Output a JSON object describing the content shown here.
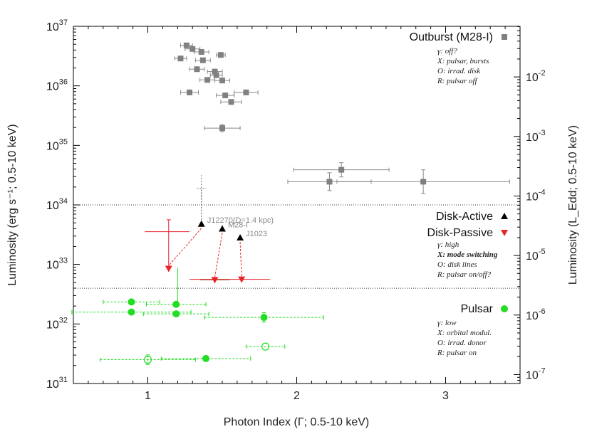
{
  "chart_data": {
    "type": "scatter",
    "xlabel": "Photon Index (Γ; 0.5-10 keV)",
    "ylabel_left": "Luminosity (erg s⁻¹; 0.5-10 keV)",
    "ylabel_right": "Luminosity (L_Edd; 0.5-10 keV)",
    "xlim": [
      0.5,
      3.5
    ],
    "ylim_log10": [
      31,
      37
    ],
    "x_ticks": [
      {
        "value": 1,
        "label": "1"
      },
      {
        "value": 2,
        "label": "2"
      },
      {
        "value": 3,
        "label": "3"
      }
    ],
    "y_ticks": [
      {
        "exp": 31,
        "label": "10",
        "sup": "31"
      },
      {
        "exp": 32,
        "label": "10",
        "sup": "32"
      },
      {
        "exp": 33,
        "label": "10",
        "sup": "33"
      },
      {
        "exp": 34,
        "label": "10",
        "sup": "34"
      },
      {
        "exp": 35,
        "label": "10",
        "sup": "35"
      },
      {
        "exp": 36,
        "label": "10",
        "sup": "36"
      },
      {
        "exp": 37,
        "label": "10",
        "sup": "37"
      }
    ],
    "y_right_ticks": [
      {
        "exp": 31.15,
        "label": "10",
        "sup": "-7"
      },
      {
        "exp": 32.15,
        "label": "10",
        "sup": "-6"
      },
      {
        "exp": 33.15,
        "label": "10",
        "sup": "-5"
      },
      {
        "exp": 34.15,
        "label": "10",
        "sup": "-4"
      },
      {
        "exp": 35.15,
        "label": "10",
        "sup": "-3"
      },
      {
        "exp": 36.15,
        "label": "10",
        "sup": "-2"
      }
    ],
    "boundaries_log10": [
      34.0,
      32.6
    ],
    "series": [
      {
        "name": "Outburst (M28-I)",
        "color": "#808080",
        "marker": "square",
        "notes": [
          "γ: off?",
          "X: pulsar, bursts",
          "O: irrad. disk",
          "R: pulsar off"
        ],
        "points": [
          {
            "x": 1.26,
            "logy": 36.68,
            "xerr": 0.04
          },
          {
            "x": 1.3,
            "logy": 36.62,
            "xerr": 0.05
          },
          {
            "x": 1.36,
            "logy": 36.57,
            "xerr": 0.05
          },
          {
            "x": 1.22,
            "logy": 36.46,
            "xerr": 0.04
          },
          {
            "x": 1.37,
            "logy": 36.43,
            "xerr": 0.05
          },
          {
            "x": 1.49,
            "logy": 36.52,
            "xerr": 0.03
          },
          {
            "x": 1.33,
            "logy": 36.28,
            "xerr": 0.05
          },
          {
            "x": 1.45,
            "logy": 36.24,
            "xerr": 0.05
          },
          {
            "x": 1.46,
            "logy": 36.18,
            "xerr": 0.04
          },
          {
            "x": 1.4,
            "logy": 36.1,
            "xerr": 0.05
          },
          {
            "x": 1.5,
            "logy": 36.09,
            "xerr": 0.05
          },
          {
            "x": 1.28,
            "logy": 35.89,
            "xerr": 0.06
          },
          {
            "x": 1.52,
            "logy": 35.84,
            "xerr": 0.06
          },
          {
            "x": 1.56,
            "logy": 35.73,
            "xerr": 0.07
          },
          {
            "x": 1.66,
            "logy": 35.89,
            "xerr": 0.08
          },
          {
            "x": 1.5,
            "logy": 35.29,
            "xerr": 0.12,
            "yerr": 0.06
          },
          {
            "x": 2.22,
            "logy": 34.39,
            "xerr": 0.28,
            "yerr": 0.15
          },
          {
            "x": 2.3,
            "logy": 34.59,
            "xerr": 0.32,
            "yerr": 0.12
          },
          {
            "x": 2.85,
            "logy": 34.39,
            "xerr": 0.58,
            "yerr": 0.2
          }
        ]
      },
      {
        "name": "Disk-Active",
        "color": "#000000",
        "marker": "triangle-up",
        "notes": [
          "γ: high",
          "X: mode switching",
          "O: disk lines",
          "R: pulsar on/off?"
        ],
        "points": [
          {
            "x": 1.36,
            "logy": 33.68,
            "label": "J12270(D=1.4 kpc)"
          },
          {
            "x": 1.5,
            "logy": 33.6,
            "label": "M28-I"
          },
          {
            "x": 1.62,
            "logy": 33.45,
            "label": "J1023"
          }
        ]
      },
      {
        "name": "Disk-Passive",
        "color": "#e8232a",
        "marker": "triangle-down",
        "points": [
          {
            "x": 1.14,
            "logy": 32.93
          },
          {
            "x": 1.45,
            "logy": 32.74
          },
          {
            "x": 1.63,
            "logy": 32.75
          }
        ]
      },
      {
        "name": "Pulsar",
        "color": "#22dd22",
        "marker": "circle",
        "notes": [
          "γ: low",
          "X: orbital modul.",
          "O: irrad. donor",
          "R: pulsar on"
        ],
        "points": [
          {
            "x": 0.89,
            "logy": 32.37,
            "xerr": 0.19
          },
          {
            "x": 0.89,
            "logy": 32.2,
            "xerr": 0.4
          },
          {
            "x": 1.19,
            "logy": 32.33,
            "xerr": 0.2
          },
          {
            "x": 1.19,
            "logy": 32.17,
            "xerr": 0.22
          },
          {
            "x": 1.78,
            "logy": 32.11,
            "xerr": 0.4,
            "yerr": 0.08
          },
          {
            "x": 1.39,
            "logy": 31.42,
            "xerr": 0.3
          },
          {
            "x": 1.79,
            "logy": 31.62,
            "xerr": 0.13,
            "open": true
          },
          {
            "x": 1.0,
            "logy": 31.4,
            "xerr": 0.32,
            "yerr": 0.08,
            "open": true
          }
        ]
      }
    ]
  }
}
